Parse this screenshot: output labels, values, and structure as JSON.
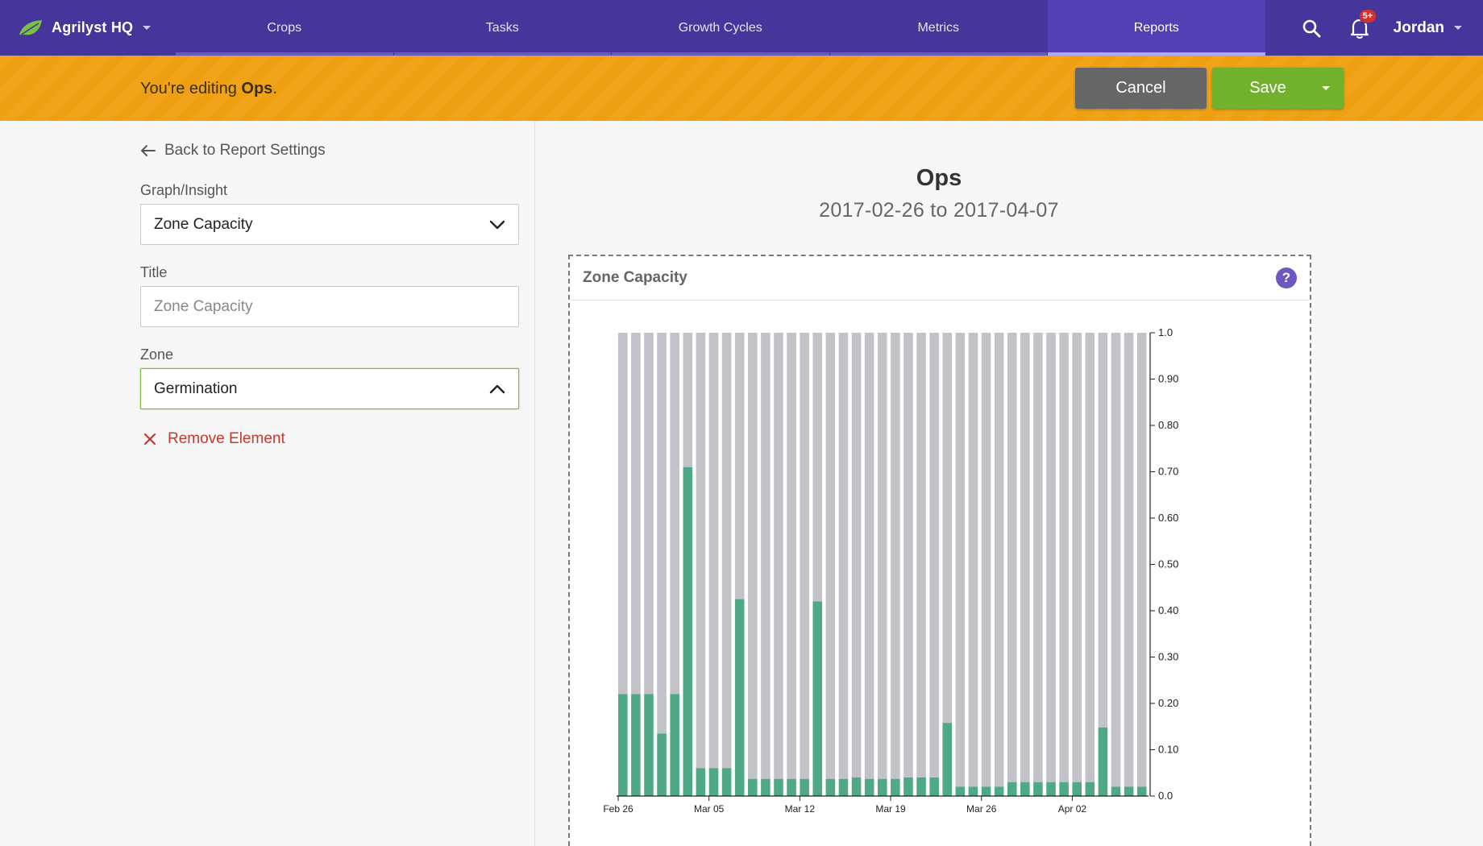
{
  "nav": {
    "brand": "Agrilyst HQ",
    "tabs": [
      "Crops",
      "Tasks",
      "Growth Cycles",
      "Metrics",
      "Reports"
    ],
    "active_tab": "Reports",
    "notifications_badge": "5+",
    "user": "Jordan"
  },
  "banner": {
    "prefix": "You're editing ",
    "report_name": "Ops",
    "suffix": ".",
    "cancel_label": "Cancel",
    "save_label": "Save"
  },
  "sidebar": {
    "back_label": "Back to Report Settings",
    "graph_label": "Graph/Insight",
    "graph_value": "Zone Capacity",
    "title_label": "Title",
    "title_placeholder": "Zone Capacity",
    "zone_label": "Zone",
    "zone_value": "Germination",
    "remove_label": "Remove Element"
  },
  "report": {
    "title": "Ops",
    "date_range": "2017-02-26 to 2017-04-07",
    "card_title": "Zone Capacity",
    "help_glyph": "?"
  },
  "colors": {
    "nav_bg": "#46359a",
    "banner": "#f1a31a",
    "save_green": "#72b12c",
    "bar_used": "#4fa987",
    "bar_capacity": "#c2c3c8",
    "help_purple": "#6d58c2",
    "remove_red": "#c23a2e"
  },
  "chart_data": {
    "type": "bar",
    "stacked": true,
    "categories": [
      "2017-02-26",
      "2017-02-27",
      "2017-02-28",
      "2017-03-01",
      "2017-03-02",
      "2017-03-03",
      "2017-03-04",
      "2017-03-05",
      "2017-03-06",
      "2017-03-07",
      "2017-03-08",
      "2017-03-09",
      "2017-03-10",
      "2017-03-11",
      "2017-03-12",
      "2017-03-13",
      "2017-03-14",
      "2017-03-15",
      "2017-03-16",
      "2017-03-17",
      "2017-03-18",
      "2017-03-19",
      "2017-03-20",
      "2017-03-21",
      "2017-03-22",
      "2017-03-23",
      "2017-03-24",
      "2017-03-25",
      "2017-03-26",
      "2017-03-27",
      "2017-03-28",
      "2017-03-29",
      "2017-03-30",
      "2017-03-31",
      "2017-04-01",
      "2017-04-02",
      "2017-04-03",
      "2017-04-04",
      "2017-04-05",
      "2017-04-06",
      "2017-04-07"
    ],
    "series": [
      {
        "values": [
          0.22,
          0.22,
          0.22,
          0.135,
          0.22,
          0.71,
          0.06,
          0.06,
          0.06,
          0.425,
          0.037,
          0.037,
          0.037,
          0.037,
          0.037,
          0.42,
          0.037,
          0.037,
          0.04,
          0.037,
          0.037,
          0.037,
          0.04,
          0.04,
          0.04,
          0.158,
          0.02,
          0.02,
          0.02,
          0.02,
          0.03,
          0.03,
          0.03,
          0.03,
          0.03,
          0.03,
          0.03,
          0.148,
          0.02,
          0.02,
          0.02
        ]
      },
      {
        "values": [
          0.78,
          0.78,
          0.78,
          0.865,
          0.78,
          0.29,
          0.94,
          0.94,
          0.94,
          0.575,
          0.963,
          0.963,
          0.963,
          0.963,
          0.963,
          0.58,
          0.963,
          0.963,
          0.96,
          0.963,
          0.963,
          0.963,
          0.96,
          0.96,
          0.96,
          0.842,
          0.98,
          0.98,
          0.98,
          0.98,
          0.97,
          0.97,
          0.97,
          0.97,
          0.97,
          0.97,
          0.97,
          0.852,
          0.98,
          0.98,
          0.98
        ]
      }
    ],
    "x_tick_labels": [
      "Feb 26",
      "Mar 05",
      "Mar 12",
      "Mar 19",
      "Mar 26",
      "Apr 02"
    ],
    "x_tick_indices": [
      0,
      7,
      14,
      21,
      28,
      35
    ],
    "y_tick_labels": [
      "0.0",
      "0.10",
      "0.20",
      "0.30",
      "0.40",
      "0.50",
      "0.60",
      "0.70",
      "0.80",
      "0.90",
      "1.0"
    ],
    "ylim": [
      0,
      1.0
    ],
    "y_axis_side": "right",
    "title": "Zone Capacity"
  }
}
